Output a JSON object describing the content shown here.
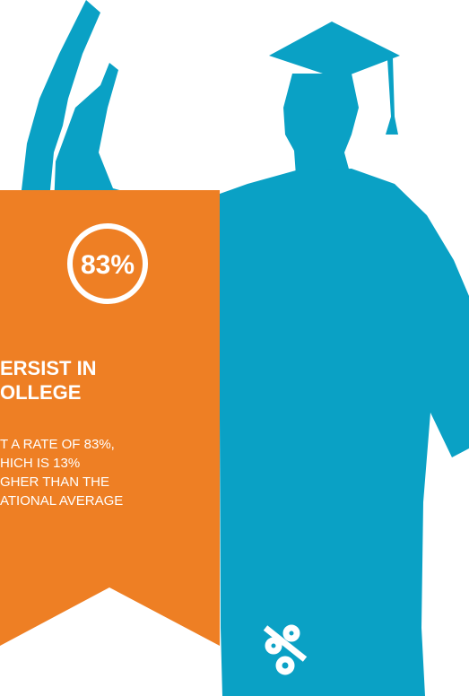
{
  "badge": {
    "value": "83%"
  },
  "heading": [
    "ERSIST IN",
    "OLLEGE"
  ],
  "body": [
    "T A RATE OF 83%,",
    "HICH IS 13%",
    "GHER THAN THE",
    "ATIONAL AVERAGE"
  ]
}
